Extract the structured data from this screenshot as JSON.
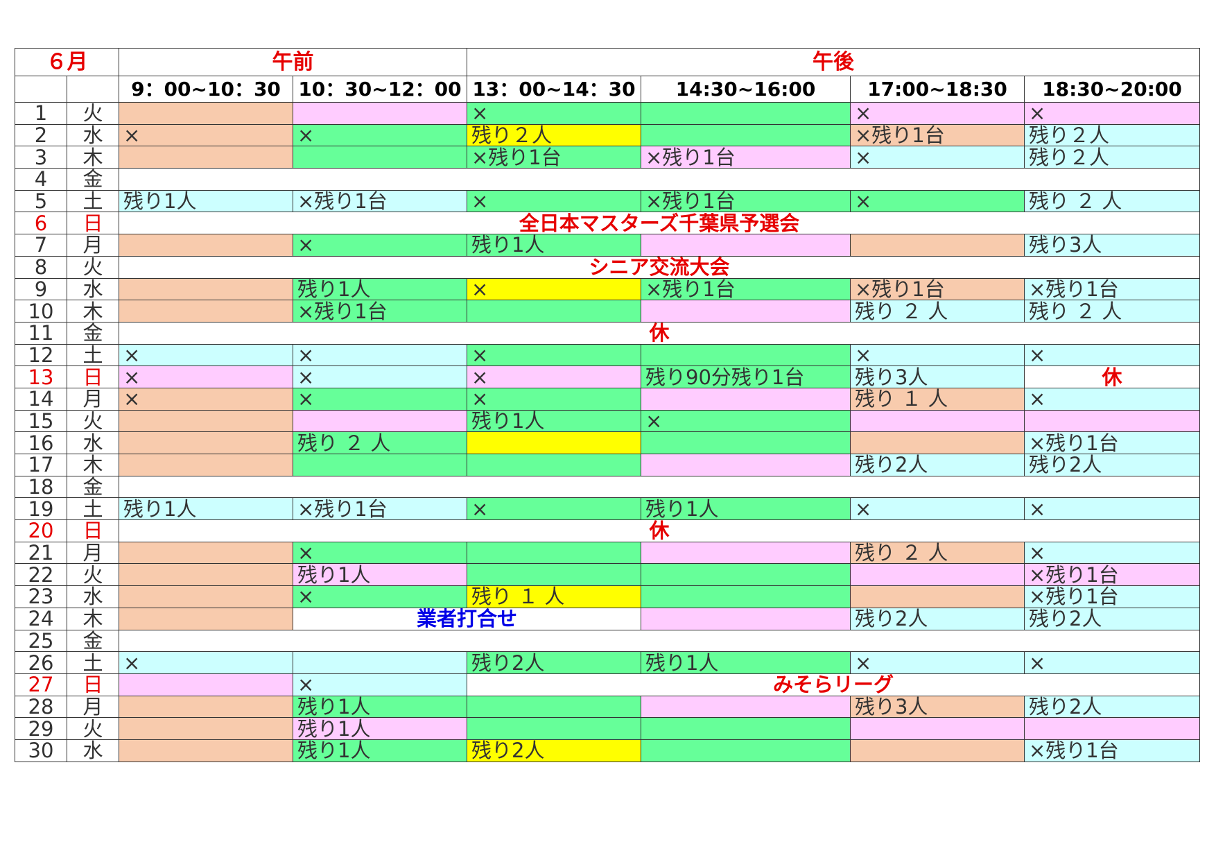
{
  "month": "６月",
  "gozen": "午前",
  "gogo": "午後",
  "colors": {
    "o": "#f8cbad",
    "p": "#ffccff",
    "g": "#66ff99",
    "c": "#ccffff",
    "y": "#ffff00",
    "w": "#ffffff"
  },
  "slots": [
    "9：00~10：30",
    "10：30~12：00",
    "13：00~14：30",
    "14:30~16:00",
    "17:00~18:30",
    "18:30~20:00"
  ],
  "days": [
    {
      "d": "1",
      "w": "火",
      "cells": [
        {
          "c": "o"
        },
        {
          "c": "p"
        },
        {
          "c": "g",
          "t": "×"
        },
        {
          "c": "g"
        },
        {
          "c": "p",
          "t": "×"
        },
        {
          "c": "p",
          "t": "×"
        }
      ]
    },
    {
      "d": "2",
      "w": "水",
      "cells": [
        {
          "c": "o",
          "t": "×"
        },
        {
          "c": "g",
          "t": "×"
        },
        {
          "c": "y",
          "t": "残り２人"
        },
        {
          "c": "g"
        },
        {
          "c": "o",
          "t": "×残り1台"
        },
        {
          "c": "c",
          "t": "残り２人"
        }
      ]
    },
    {
      "d": "3",
      "w": "木",
      "cells": [
        {
          "c": "o"
        },
        {
          "c": "g"
        },
        {
          "c": "g",
          "t": "×残り1台"
        },
        {
          "c": "p",
          "t": "×残り1台"
        },
        {
          "c": "c",
          "t": "×"
        },
        {
          "c": "c",
          "t": "残り２人"
        }
      ]
    },
    {
      "d": "4",
      "w": "金",
      "banner": {
        "t": ""
      }
    },
    {
      "d": "5",
      "w": "土",
      "cells": [
        {
          "c": "c",
          "t": "残り1人"
        },
        {
          "c": "c",
          "t": "×残り1台"
        },
        {
          "c": "g",
          "t": "×"
        },
        {
          "c": "g",
          "t": "×残り1台"
        },
        {
          "c": "g",
          "t": "×"
        },
        {
          "c": "c",
          "t": "残り ２ 人"
        }
      ]
    },
    {
      "d": "6",
      "w": "日",
      "red": true,
      "banner": {
        "t": "全日本マスターズ千葉県予選会"
      }
    },
    {
      "d": "7",
      "w": "月",
      "cells": [
        {
          "c": "o"
        },
        {
          "c": "g",
          "t": "×"
        },
        {
          "c": "g",
          "t": "残り1人"
        },
        {
          "c": "p"
        },
        {
          "c": "o"
        },
        {
          "c": "c",
          "t": "残り3人"
        }
      ]
    },
    {
      "d": "8",
      "w": "火",
      "banner": {
        "t": "シニア交流大会"
      }
    },
    {
      "d": "9",
      "w": "水",
      "cells": [
        {
          "c": "o"
        },
        {
          "c": "g",
          "t": "残り1人"
        },
        {
          "c": "y",
          "t": "×"
        },
        {
          "c": "g",
          "t": "×残り1台"
        },
        {
          "c": "o",
          "t": "×残り1台"
        },
        {
          "c": "c",
          "t": "×残り1台"
        }
      ]
    },
    {
      "d": "10",
      "w": "木",
      "cells": [
        {
          "c": "o"
        },
        {
          "c": "g",
          "t": "×残り1台"
        },
        {
          "c": "g"
        },
        {
          "c": "p"
        },
        {
          "c": "c",
          "t": "残り ２ 人"
        },
        {
          "c": "c",
          "t": "残り ２ 人"
        }
      ]
    },
    {
      "d": "11",
      "w": "金",
      "banner": {
        "t": "休"
      }
    },
    {
      "d": "12",
      "w": "土",
      "cells": [
        {
          "c": "c",
          "t": "×"
        },
        {
          "c": "c",
          "t": "×"
        },
        {
          "c": "g",
          "t": "×"
        },
        {
          "c": "g"
        },
        {
          "c": "c",
          "t": "×"
        },
        {
          "c": "c",
          "t": "×"
        }
      ]
    },
    {
      "d": "13",
      "w": "日",
      "red": true,
      "cells": [
        {
          "c": "p",
          "t": "×"
        },
        {
          "c": "c",
          "t": "×"
        },
        {
          "c": "p",
          "t": "×"
        },
        {
          "c": "g",
          "t": "残り90分残り1台"
        },
        {
          "c": "c",
          "t": "残り3人"
        },
        {
          "c": "w",
          "t": "休",
          "center": true
        }
      ]
    },
    {
      "d": "14",
      "w": "月",
      "cells": [
        {
          "c": "o",
          "t": "×"
        },
        {
          "c": "g",
          "t": "×"
        },
        {
          "c": "g",
          "t": "×"
        },
        {
          "c": "p"
        },
        {
          "c": "o",
          "t": "残り １ 人"
        },
        {
          "c": "c",
          "t": "×"
        }
      ]
    },
    {
      "d": "15",
      "w": "火",
      "cells": [
        {
          "c": "o"
        },
        {
          "c": "p"
        },
        {
          "c": "g",
          "t": "残り1人"
        },
        {
          "c": "g",
          "t": "×"
        },
        {
          "c": "p"
        },
        {
          "c": "p"
        }
      ]
    },
    {
      "d": "16",
      "w": "水",
      "cells": [
        {
          "c": "o"
        },
        {
          "c": "g",
          "t": "残り ２ 人"
        },
        {
          "c": "y"
        },
        {
          "c": "g"
        },
        {
          "c": "o"
        },
        {
          "c": "c",
          "t": "×残り1台"
        }
      ]
    },
    {
      "d": "17",
      "w": "木",
      "cells": [
        {
          "c": "o"
        },
        {
          "c": "g"
        },
        {
          "c": "g"
        },
        {
          "c": "p"
        },
        {
          "c": "c",
          "t": "残り2人"
        },
        {
          "c": "c",
          "t": "残り2人"
        }
      ]
    },
    {
      "d": "18",
      "w": "金",
      "banner": {
        "t": ""
      }
    },
    {
      "d": "19",
      "w": "土",
      "cells": [
        {
          "c": "c",
          "t": "残り1人"
        },
        {
          "c": "c",
          "t": "×残り1台"
        },
        {
          "c": "g",
          "t": "×"
        },
        {
          "c": "g",
          "t": "残り1人"
        },
        {
          "c": "c",
          "t": "×"
        },
        {
          "c": "c",
          "t": "×"
        }
      ]
    },
    {
      "d": "20",
      "w": "日",
      "red": true,
      "banner": {
        "t": "休"
      }
    },
    {
      "d": "21",
      "w": "月",
      "cells": [
        {
          "c": "o"
        },
        {
          "c": "g",
          "t": "×"
        },
        {
          "c": "g"
        },
        {
          "c": "p"
        },
        {
          "c": "o",
          "t": "残り ２ 人"
        },
        {
          "c": "c",
          "t": "×"
        }
      ]
    },
    {
      "d": "22",
      "w": "火",
      "cells": [
        {
          "c": "o"
        },
        {
          "c": "p",
          "t": "残り1人"
        },
        {
          "c": "g"
        },
        {
          "c": "g"
        },
        {
          "c": "p"
        },
        {
          "c": "p",
          "t": "×残り1台"
        }
      ]
    },
    {
      "d": "23",
      "w": "水",
      "cells": [
        {
          "c": "o"
        },
        {
          "c": "g",
          "t": "×"
        },
        {
          "c": "y",
          "t": "残り １ 人"
        },
        {
          "c": "g"
        },
        {
          "c": "o"
        },
        {
          "c": "c",
          "t": "×残り1台"
        }
      ]
    },
    {
      "d": "24",
      "w": "木",
      "cells": [
        {
          "c": "o"
        },
        {
          "c": "w",
          "span": 2,
          "t": "業者打合せ",
          "blue": true
        },
        {
          "c": "p"
        },
        {
          "c": "c",
          "t": "残り2人"
        },
        {
          "c": "c",
          "t": "残り2人"
        }
      ]
    },
    {
      "d": "25",
      "w": "金",
      "banner": {
        "t": ""
      }
    },
    {
      "d": "26",
      "w": "土",
      "cells": [
        {
          "c": "c",
          "t": "×"
        },
        {
          "c": "c"
        },
        {
          "c": "g",
          "t": "残り2人"
        },
        {
          "c": "g",
          "t": "残り1人"
        },
        {
          "c": "c",
          "t": "×"
        },
        {
          "c": "c",
          "t": "×"
        }
      ]
    },
    {
      "d": "27",
      "w": "日",
      "red": true,
      "cells": [
        {
          "c": "p"
        },
        {
          "c": "c",
          "t": "×"
        },
        {
          "c": "w",
          "span": 4,
          "t": "みそらリーグ",
          "banner": true
        }
      ]
    },
    {
      "d": "28",
      "w": "月",
      "cells": [
        {
          "c": "o"
        },
        {
          "c": "g",
          "t": "残り1人"
        },
        {
          "c": "g"
        },
        {
          "c": "p"
        },
        {
          "c": "o",
          "t": "残り3人"
        },
        {
          "c": "c",
          "t": "残り2人"
        }
      ]
    },
    {
      "d": "29",
      "w": "火",
      "cells": [
        {
          "c": "o"
        },
        {
          "c": "p",
          "t": "残り1人"
        },
        {
          "c": "g"
        },
        {
          "c": "g"
        },
        {
          "c": "p"
        },
        {
          "c": "p"
        }
      ]
    },
    {
      "d": "30",
      "w": "水",
      "cells": [
        {
          "c": "o"
        },
        {
          "c": "g",
          "t": "残り1人"
        },
        {
          "c": "y",
          "t": "残り2人"
        },
        {
          "c": "g"
        },
        {
          "c": "o"
        },
        {
          "c": "c",
          "t": "×残り1台"
        }
      ]
    }
  ]
}
